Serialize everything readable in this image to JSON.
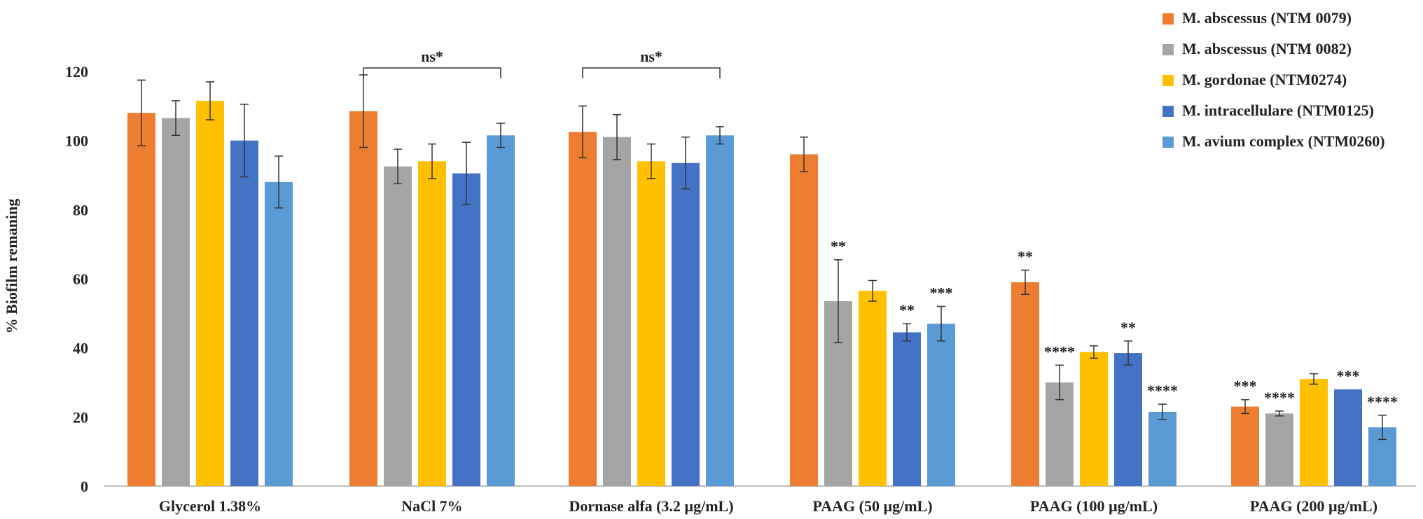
{
  "chart_data": {
    "type": "bar",
    "title": "",
    "xlabel": "",
    "ylabel": "% Biofilm remaning",
    "ylim": [
      0,
      120
    ],
    "yticks": [
      0,
      20,
      40,
      60,
      80,
      100,
      120
    ],
    "grid": false,
    "legend_position": "top-right",
    "categories": [
      "Glycerol 1.38%",
      "NaCl 7%",
      "Dornase alfa (3.2 µg/mL)",
      "PAAG (50 µg/mL)",
      "PAAG (100 µg/mL)",
      "PAAG (200 µg/mL)"
    ],
    "series": [
      {
        "name": "M. abscessus (NTM 0079)",
        "color": "#ED7D31",
        "values": [
          108,
          108.5,
          102.5,
          96,
          59,
          23
        ],
        "errors": [
          9.5,
          10.5,
          7.5,
          5,
          3.5,
          2
        ],
        "significance": [
          "",
          "",
          "",
          "",
          "**",
          "***"
        ]
      },
      {
        "name": "M. abscessus (NTM 0082)",
        "color": "#A5A5A5",
        "values": [
          106.5,
          92.5,
          101,
          53.5,
          30,
          21
        ],
        "errors": [
          5,
          5,
          6.5,
          12,
          5,
          0.7
        ],
        "significance": [
          "",
          "",
          "",
          "**",
          "****",
          "****"
        ]
      },
      {
        "name": "M. gordonae (NTM0274)",
        "color": "#FFC000",
        "values": [
          111.5,
          94,
          94,
          56.5,
          38.8,
          31
        ],
        "errors": [
          5.5,
          5,
          5,
          3,
          1.8,
          1.5
        ],
        "significance": [
          "",
          "",
          "",
          "",
          "",
          ""
        ]
      },
      {
        "name": "M. intracellulare (NTM0125)",
        "color": "#4472C4",
        "values": [
          100,
          90.5,
          93.5,
          44.5,
          38.5,
          28
        ],
        "errors": [
          10.5,
          9,
          7.5,
          2.5,
          3.5,
          0
        ],
        "significance": [
          "",
          "",
          "",
          "**",
          "**",
          "***"
        ]
      },
      {
        "name": "M. avium complex (NTM0260)",
        "color": "#5B9BD5",
        "values": [
          88,
          101.5,
          101.5,
          47,
          21.5,
          17
        ],
        "errors": [
          7.5,
          3.5,
          2.5,
          5,
          2.2,
          3.5
        ],
        "significance": [
          "",
          "",
          "",
          "***",
          "****",
          "****"
        ]
      }
    ],
    "annotations": [
      {
        "text": "ns*",
        "type": "bracket",
        "category_index": 1
      },
      {
        "text": "ns*",
        "type": "bracket",
        "category_index": 2
      }
    ]
  }
}
